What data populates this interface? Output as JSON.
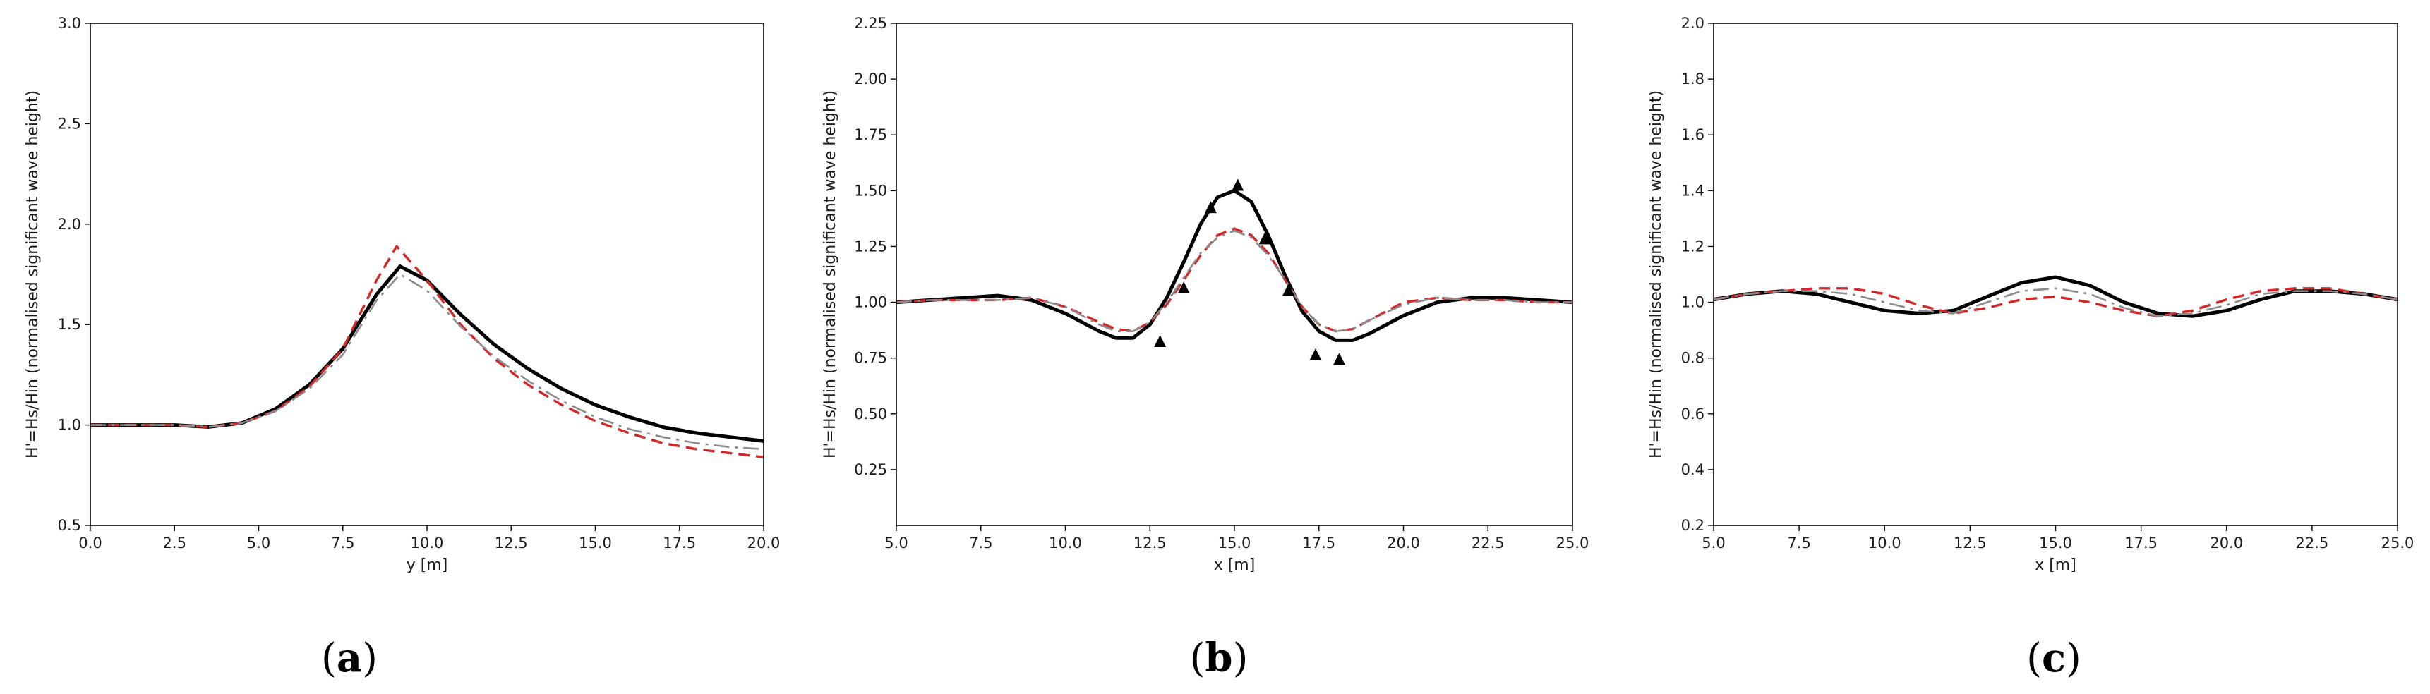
{
  "chart_data": [
    {
      "type": "line",
      "panel_label": "a",
      "xlabel": "y [m]",
      "ylabel": "H'=Hs/Hin (normalised significant wave height)",
      "xlim": [
        0,
        20
      ],
      "ylim": [
        0.5,
        3.0
      ],
      "xticks": [
        0.0,
        2.5,
        5.0,
        7.5,
        10.0,
        12.5,
        15.0,
        17.5,
        20.0
      ],
      "xtick_labels": [
        "0.0",
        "2.5",
        "5.0",
        "7.5",
        "10.0",
        "12.5",
        "15.0",
        "17.5",
        "20.0"
      ],
      "yticks": [
        0.5,
        1.0,
        1.5,
        2.0,
        2.5,
        3.0
      ],
      "ytick_labels": [
        "0.5",
        "1.0",
        "1.5",
        "2.0",
        "2.5",
        "3.0"
      ],
      "grid": false,
      "series": [
        {
          "style": "solid",
          "color": "#000000",
          "x": [
            0,
            2.5,
            3.5,
            4.5,
            5.5,
            6.5,
            7.5,
            8.5,
            9.2,
            10,
            11,
            12,
            13,
            14,
            15,
            16,
            17,
            18,
            19,
            20
          ],
          "y": [
            1.0,
            1.0,
            0.99,
            1.01,
            1.08,
            1.2,
            1.38,
            1.65,
            1.79,
            1.72,
            1.55,
            1.4,
            1.28,
            1.18,
            1.1,
            1.04,
            0.99,
            0.96,
            0.94,
            0.92
          ]
        },
        {
          "style": "dashed",
          "color": "#d62728",
          "x": [
            0,
            2.5,
            3.5,
            4.5,
            5.5,
            6.5,
            7.5,
            8.5,
            9.1,
            10,
            11,
            12,
            13,
            14,
            15,
            16,
            17,
            18,
            19,
            20
          ],
          "y": [
            1.0,
            1.0,
            0.99,
            1.01,
            1.07,
            1.19,
            1.38,
            1.72,
            1.89,
            1.72,
            1.5,
            1.33,
            1.2,
            1.1,
            1.02,
            0.96,
            0.91,
            0.88,
            0.86,
            0.84
          ]
        },
        {
          "style": "dashdot",
          "color": "#8c8c8c",
          "x": [
            0,
            2.5,
            3.5,
            4.5,
            5.5,
            6.5,
            7.5,
            8.5,
            9.2,
            10,
            11,
            12,
            13,
            14,
            15,
            16,
            17,
            18,
            19,
            20
          ],
          "y": [
            1.0,
            1.0,
            0.99,
            1.01,
            1.07,
            1.18,
            1.35,
            1.62,
            1.75,
            1.67,
            1.49,
            1.34,
            1.22,
            1.12,
            1.04,
            0.98,
            0.94,
            0.91,
            0.89,
            0.88
          ]
        }
      ]
    },
    {
      "type": "line",
      "panel_label": "b",
      "xlabel": "x [m]",
      "ylabel": "H'=Hs/Hin (normalised significant wave height)",
      "xlim": [
        5,
        25
      ],
      "ylim": [
        0.0,
        2.25
      ],
      "xticks": [
        5.0,
        7.5,
        10.0,
        12.5,
        15.0,
        17.5,
        20.0,
        22.5,
        25.0
      ],
      "xtick_labels": [
        "5.0",
        "7.5",
        "10.0",
        "12.5",
        "15.0",
        "17.5",
        "20.0",
        "22.5",
        "25.0"
      ],
      "yticks": [
        0.25,
        0.5,
        0.75,
        1.0,
        1.25,
        1.5,
        1.75,
        2.0,
        2.25
      ],
      "ytick_labels": [
        "0.25",
        "0.50",
        "0.75",
        "1.00",
        "1.25",
        "1.50",
        "1.75",
        "2.00",
        "2.25"
      ],
      "grid": false,
      "series": [
        {
          "style": "solid",
          "color": "#000000",
          "x": [
            5,
            6,
            7,
            8,
            9,
            10,
            11,
            11.5,
            12,
            12.5,
            13,
            13.5,
            14,
            14.5,
            15,
            15.5,
            16,
            16.5,
            17,
            17.5,
            18,
            18.5,
            19,
            20,
            21,
            22,
            23,
            24,
            25
          ],
          "y": [
            1.0,
            1.01,
            1.02,
            1.03,
            1.01,
            0.95,
            0.87,
            0.84,
            0.84,
            0.9,
            1.02,
            1.18,
            1.35,
            1.47,
            1.5,
            1.45,
            1.3,
            1.12,
            0.96,
            0.87,
            0.83,
            0.83,
            0.86,
            0.94,
            1.0,
            1.02,
            1.02,
            1.01,
            1.0
          ]
        },
        {
          "style": "dashed",
          "color": "#d62728",
          "x": [
            5,
            6,
            7,
            8,
            9,
            10,
            11,
            11.5,
            12,
            12.5,
            13,
            13.5,
            14,
            14.5,
            15,
            15.5,
            16,
            16.5,
            17,
            17.5,
            18,
            18.5,
            19,
            20,
            21,
            22,
            23,
            24,
            25
          ],
          "y": [
            1.0,
            1.01,
            1.01,
            1.01,
            1.02,
            0.98,
            0.91,
            0.88,
            0.87,
            0.91,
            0.99,
            1.1,
            1.21,
            1.3,
            1.33,
            1.3,
            1.22,
            1.1,
            0.98,
            0.9,
            0.87,
            0.88,
            0.92,
            1.0,
            1.02,
            1.01,
            1.01,
            1.0,
            1.0
          ]
        },
        {
          "style": "dashdot",
          "color": "#8c8c8c",
          "x": [
            5,
            6,
            7,
            8,
            9,
            10,
            11,
            11.5,
            12,
            12.5,
            13,
            13.5,
            14,
            14.5,
            15,
            15.5,
            16,
            16.5,
            17,
            17.5,
            18,
            18.5,
            19,
            20,
            21,
            22,
            23,
            24,
            25
          ],
          "y": [
            1.0,
            1.01,
            1.01,
            1.01,
            1.02,
            0.98,
            0.9,
            0.87,
            0.87,
            0.91,
            1.0,
            1.11,
            1.22,
            1.29,
            1.32,
            1.29,
            1.21,
            1.1,
            0.98,
            0.9,
            0.87,
            0.88,
            0.92,
            0.99,
            1.02,
            1.01,
            1.01,
            1.0,
            1.0
          ]
        },
        {
          "style": "markers",
          "marker": "triangle",
          "color": "#000000",
          "x": [
            12.8,
            13.5,
            14.3,
            15.1,
            15.9,
            16.6,
            17.4,
            18.1
          ],
          "y": [
            0.82,
            1.06,
            1.42,
            1.52,
            1.28,
            1.05,
            0.76,
            0.74
          ]
        }
      ]
    },
    {
      "type": "line",
      "panel_label": "c",
      "xlabel": "x [m]",
      "ylabel": "H'=Hs/Hin (normalised significant wave height)",
      "xlim": [
        5,
        25
      ],
      "ylim": [
        0.2,
        2.0
      ],
      "xticks": [
        5.0,
        7.5,
        10.0,
        12.5,
        15.0,
        17.5,
        20.0,
        22.5,
        25.0
      ],
      "xtick_labels": [
        "5.0",
        "7.5",
        "10.0",
        "12.5",
        "15.0",
        "17.5",
        "20.0",
        "22.5",
        "25.0"
      ],
      "yticks": [
        0.2,
        0.4,
        0.6,
        0.8,
        1.0,
        1.2,
        1.4,
        1.6,
        1.8,
        2.0
      ],
      "ytick_labels": [
        "0.2",
        "0.4",
        "0.6",
        "0.8",
        "1.0",
        "1.2",
        "1.4",
        "1.6",
        "1.8",
        "2.0"
      ],
      "grid": false,
      "series": [
        {
          "style": "solid",
          "color": "#000000",
          "x": [
            5,
            6,
            7,
            8,
            9,
            10,
            11,
            12,
            13,
            14,
            15,
            16,
            17,
            18,
            19,
            20,
            21,
            22,
            23,
            24,
            25
          ],
          "y": [
            1.01,
            1.03,
            1.04,
            1.03,
            1.0,
            0.97,
            0.96,
            0.97,
            1.02,
            1.07,
            1.09,
            1.06,
            1.0,
            0.96,
            0.95,
            0.97,
            1.01,
            1.04,
            1.04,
            1.03,
            1.01
          ]
        },
        {
          "style": "dashed",
          "color": "#d62728",
          "x": [
            5,
            6,
            7,
            8,
            9,
            10,
            11,
            12,
            13,
            14,
            15,
            16,
            17,
            18,
            19,
            20,
            21,
            22,
            23,
            24,
            25
          ],
          "y": [
            1.01,
            1.03,
            1.04,
            1.05,
            1.05,
            1.03,
            0.99,
            0.96,
            0.98,
            1.01,
            1.02,
            1.0,
            0.97,
            0.95,
            0.97,
            1.01,
            1.04,
            1.05,
            1.05,
            1.03,
            1.01
          ]
        },
        {
          "style": "dashdot",
          "color": "#8c8c8c",
          "x": [
            5,
            6,
            7,
            8,
            9,
            10,
            11,
            12,
            13,
            14,
            15,
            16,
            17,
            18,
            19,
            20,
            21,
            22,
            23,
            24,
            25
          ],
          "y": [
            1.01,
            1.03,
            1.04,
            1.04,
            1.03,
            1.0,
            0.97,
            0.96,
            1.0,
            1.04,
            1.05,
            1.03,
            0.98,
            0.95,
            0.96,
            0.99,
            1.03,
            1.04,
            1.04,
            1.03,
            1.01
          ]
        }
      ]
    }
  ]
}
